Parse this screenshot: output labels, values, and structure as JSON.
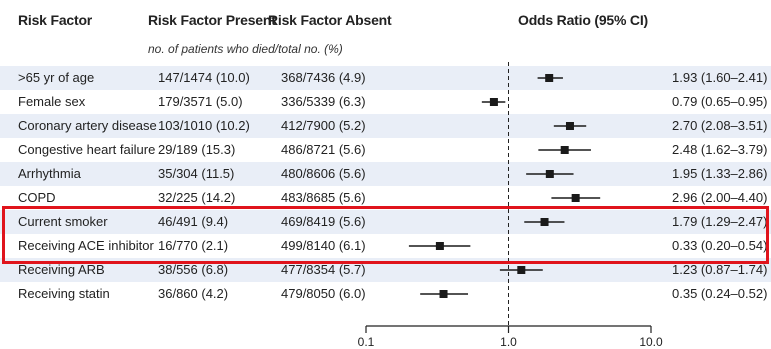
{
  "headers": {
    "risk_factor": "Risk Factor",
    "present": "Risk Factor Present",
    "absent": "Risk Factor Absent",
    "odds_ratio": "Odds Ratio (95% CI)",
    "subheader": "no. of patients who died/total no. (%)"
  },
  "chart_data": {
    "type": "forest",
    "x_scale": "log",
    "xlim": [
      0.1,
      10.0
    ],
    "reference_line": 1.0,
    "x_ticks": [
      "0.1",
      "1.0",
      "10.0"
    ],
    "rows": [
      {
        "name": ">65 yr of age",
        "present": "147/1474 (10.0)",
        "absent": "368/7436 (4.9)",
        "or_text": "1.93 (1.60–2.41)",
        "or": 1.93,
        "lo": 1.6,
        "hi": 2.41
      },
      {
        "name": "Female sex",
        "present": "179/3571 (5.0)",
        "absent": "336/5339 (6.3)",
        "or_text": "0.79 (0.65–0.95)",
        "or": 0.79,
        "lo": 0.65,
        "hi": 0.95
      },
      {
        "name": "Coronary artery disease",
        "present": "103/1010 (10.2)",
        "absent": "412/7900 (5.2)",
        "or_text": "2.70 (2.08–3.51)",
        "or": 2.7,
        "lo": 2.08,
        "hi": 3.51
      },
      {
        "name": "Congestive heart failure",
        "present": "29/189 (15.3)",
        "absent": "486/8721 (5.6)",
        "or_text": "2.48 (1.62–3.79)",
        "or": 2.48,
        "lo": 1.62,
        "hi": 3.79
      },
      {
        "name": "Arrhythmia",
        "present": "35/304 (11.5)",
        "absent": "480/8606 (5.6)",
        "or_text": "1.95 (1.33–2.86)",
        "or": 1.95,
        "lo": 1.33,
        "hi": 2.86
      },
      {
        "name": "COPD",
        "present": "32/225 (14.2)",
        "absent": "483/8685 (5.6)",
        "or_text": "2.96 (2.00–4.40)",
        "or": 2.96,
        "lo": 2.0,
        "hi": 4.4
      },
      {
        "name": "Current smoker",
        "present": "46/491 (9.4)",
        "absent": "469/8419 (5.6)",
        "or_text": "1.79 (1.29–2.47)",
        "or": 1.79,
        "lo": 1.29,
        "hi": 2.47
      },
      {
        "name": "Receiving ACE inhibitor",
        "present": "16/770 (2.1)",
        "absent": "499/8140 (6.1)",
        "or_text": "0.33 (0.20–0.54)",
        "or": 0.33,
        "lo": 0.2,
        "hi": 0.54
      },
      {
        "name": "Receiving ARB",
        "present": "38/556 (6.8)",
        "absent": "477/8354 (5.7)",
        "or_text": "1.23 (0.87–1.74)",
        "or": 1.23,
        "lo": 0.87,
        "hi": 1.74
      },
      {
        "name": "Receiving statin",
        "present": "36/860 (4.2)",
        "absent": "479/8050 (6.0)",
        "or_text": "0.35 (0.24–0.52)",
        "or": 0.35,
        "lo": 0.24,
        "hi": 0.52
      }
    ],
    "highlighted_rows": [
      "Current smoker"
    ],
    "colors": {
      "marker": "#1a1a1a",
      "row_shade": "#e9eef7",
      "highlight": "#e0141c"
    }
  }
}
